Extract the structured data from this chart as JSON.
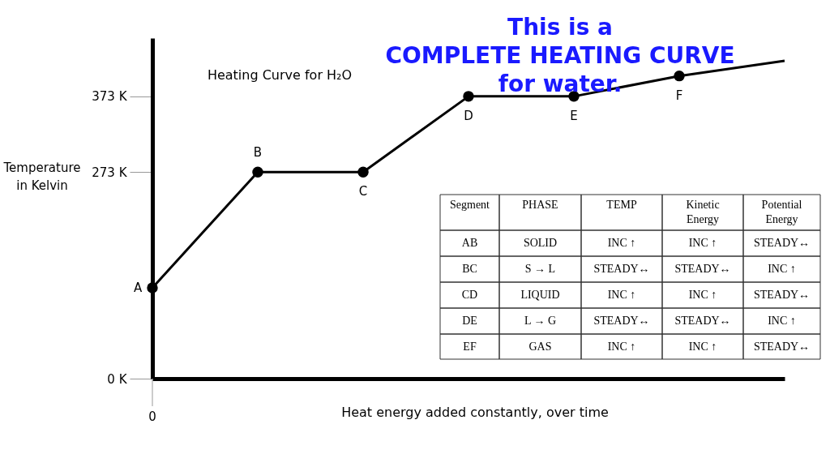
{
  "chart_data": [
    {
      "type": "line",
      "title": "This is a\nCOMPLETE HEATING CURVE\nfor water.",
      "subtitle": "Heating Curve for H₂O",
      "xlabel": "Heat energy added constantly, over time",
      "ylabel": "Temperature in Kelvin",
      "categories": [
        "A",
        "B",
        "C",
        "D",
        "E",
        "F",
        null
      ],
      "series": [
        {
          "color": "#000000",
          "values": [
            120,
            273,
            273,
            373,
            373,
            400,
            420
          ]
        }
      ],
      "marker": "circle",
      "ylim": [
        0,
        450
      ],
      "yticks": [
        {
          "value": 0,
          "label": "0 K"
        },
        {
          "value": 273,
          "label": "273 K"
        },
        {
          "value": 373,
          "label": "373 K"
        }
      ],
      "grid": false,
      "annotations": [
        "0"
      ]
    },
    {
      "type": "other",
      "annotations": [
        "Segment",
        "PHASE",
        "TEMP",
        "Kinetic Energy",
        "Potential Energy",
        "AB",
        "SOLID",
        "INC ↑",
        "INC ↑",
        "STEADY↔",
        "BC",
        "S → L",
        "STEADY↔",
        "STEADY↔",
        "INC ↑",
        "CD",
        "LIQUID",
        "INC ↑",
        "INC ↑",
        "STEADY↔",
        "DE",
        "L → G",
        "STEADY↔",
        "STEADY↔",
        "INC ↑",
        "EF",
        "GAS",
        "INC ↑",
        "INC ↑",
        "STEADY↔"
      ]
    }
  ]
}
